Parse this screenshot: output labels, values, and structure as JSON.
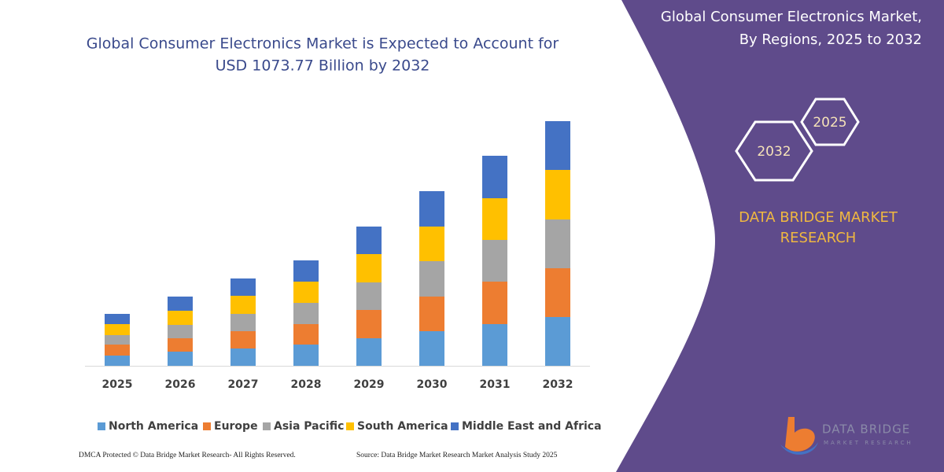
{
  "chart_data": {
    "type": "stacked-bar",
    "title": [
      "Global Consumer Electronics Market is Expected to Account for",
      "USD 1073.77 Billion by 2032"
    ],
    "categories": [
      "2025",
      "2026",
      "2027",
      "2028",
      "2029",
      "2030",
      "2031",
      "2032"
    ],
    "series": [
      {
        "name": "North America",
        "color": "#5b9bd5",
        "values": [
          13,
          18,
          22,
          27,
          35,
          44,
          53,
          62
        ]
      },
      {
        "name": "Europe",
        "color": "#ed7d31",
        "values": [
          14,
          17,
          22,
          26,
          36,
          44,
          54,
          62
        ]
      },
      {
        "name": "Asia Pacific",
        "color": "#a5a5a5",
        "values": [
          12,
          17,
          22,
          27,
          35,
          45,
          53,
          62
        ]
      },
      {
        "name": "South America",
        "color": "#ffc000",
        "values": [
          14,
          18,
          23,
          27,
          36,
          44,
          53,
          63
        ]
      },
      {
        "name": "Middle East and Africa",
        "color": "#4472c4",
        "values": [
          13,
          18,
          22,
          27,
          35,
          45,
          54,
          62
        ]
      }
    ]
  },
  "panel": {
    "title": [
      "Global Consumer Electronics Market,",
      "By Regions, 2025 to 2032"
    ],
    "hexagons": [
      "2025",
      "2032"
    ],
    "brand": [
      "DATA BRIDGE MARKET",
      "RESEARCH"
    ],
    "logo": [
      "DATA BRIDGE",
      "MARKET RESEARCH"
    ]
  },
  "footer": {
    "left": "DMCA Protected © Data Bridge Market Research-  All Rights Reserved.",
    "right": "Source: Data Bridge Market Research  Market Analysis Study 2025"
  }
}
